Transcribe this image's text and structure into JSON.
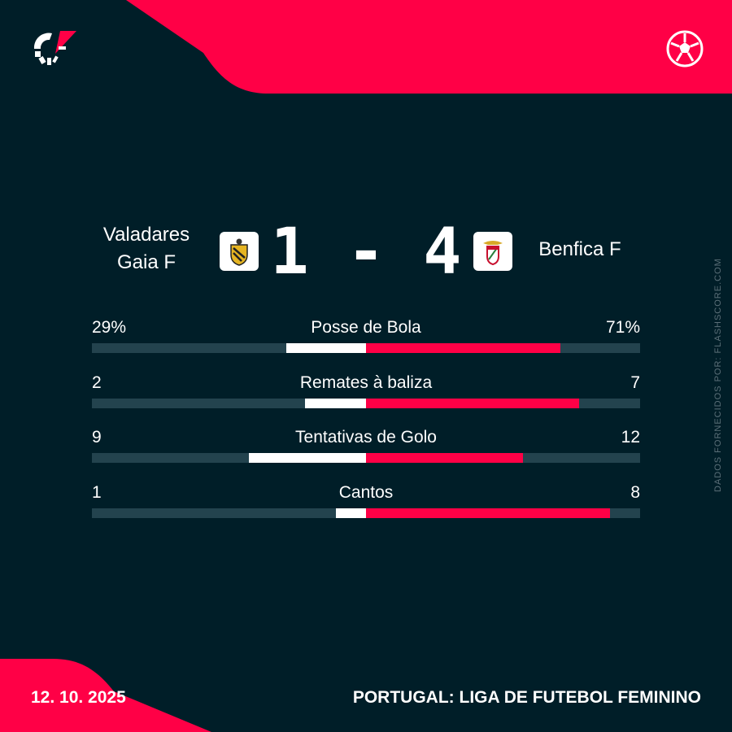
{
  "colors": {
    "background": "#001e28",
    "accent": "#ff0046",
    "track": "#23434e",
    "home_bar": "#ffffff"
  },
  "header": {
    "logo_icon": "flashscore-logo",
    "sport_icon": "soccer-ball-icon"
  },
  "match": {
    "home_team": "Valadares Gaia F",
    "home_team_line1": "Valadares",
    "home_team_line2": "Gaia F",
    "away_team": "Benfica F",
    "home_score": "1",
    "separator": "-",
    "away_score": "4",
    "score_text": "1 - 4"
  },
  "stats": [
    {
      "name": "Posse de Bola",
      "home": "29%",
      "away": "71%",
      "home_share": 0.29,
      "away_share": 0.71
    },
    {
      "name": "Remates à baliza",
      "home": "2",
      "away": "7",
      "home_share": 0.2222,
      "away_share": 0.7778
    },
    {
      "name": "Tentativas de Golo",
      "home": "9",
      "away": "12",
      "home_share": 0.4286,
      "away_share": 0.5714
    },
    {
      "name": "Cantos",
      "home": "1",
      "away": "8",
      "home_share": 0.1111,
      "away_share": 0.8889
    }
  ],
  "source": "DADOS FORNECIDOS POR: FLASHSCORE.COM",
  "footer": {
    "date": "12. 10. 2025",
    "league": "PORTUGAL: LIGA DE FUTEBOL FEMININO"
  }
}
